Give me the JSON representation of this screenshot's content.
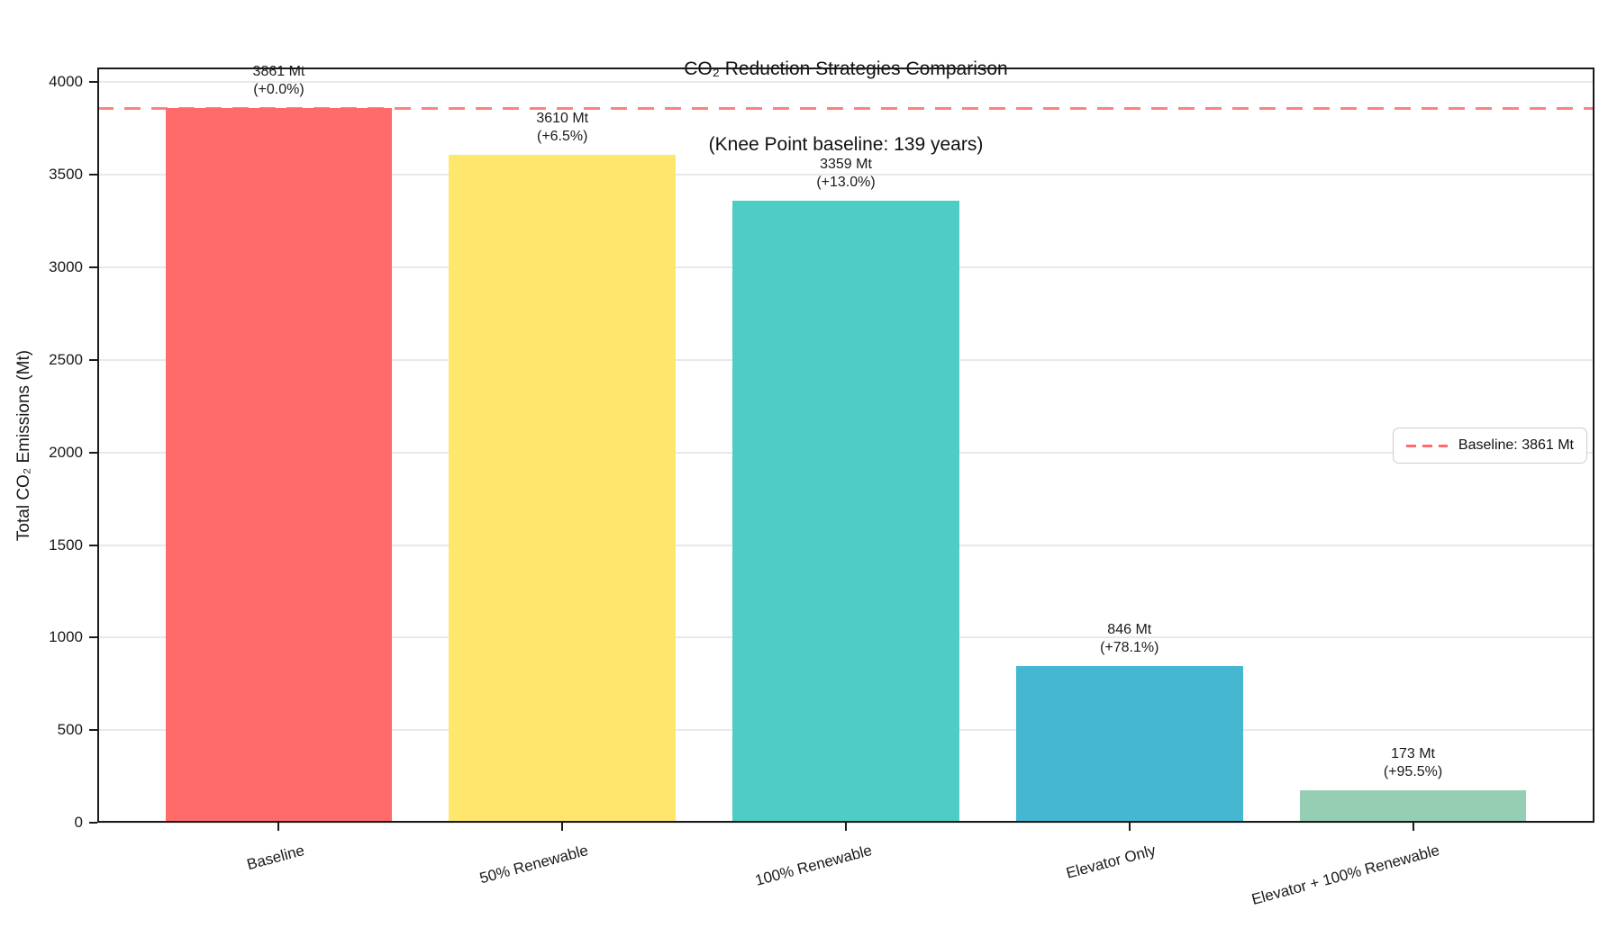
{
  "title": {
    "line1": "CO₂ Reduction Strategies Comparison",
    "line2": "(Knee Point baseline: 139 years)"
  },
  "chart_data": {
    "type": "bar",
    "title": "CO₂ Reduction Strategies Comparison (Knee Point baseline: 139 years)",
    "categories": [
      "Baseline",
      "50% Renewable",
      "100% Renewable",
      "Elevator Only",
      "Elevator + 100% Renewable"
    ],
    "values": [
      3861,
      3610,
      3359,
      846,
      173
    ],
    "value_unit": "Mt",
    "pct_change": [
      "+0.0%",
      "+6.5%",
      "+13.0%",
      "+78.1%",
      "+95.5%"
    ],
    "annotations": [
      {
        "line1": "3861 Mt",
        "line2": "(+0.0%)"
      },
      {
        "line1": "3610 Mt",
        "line2": "(+6.5%)"
      },
      {
        "line1": "3359 Mt",
        "line2": "(+13.0%)"
      },
      {
        "line1": "846 Mt",
        "line2": "(+78.1%)"
      },
      {
        "line1": "173 Mt",
        "line2": "(+95.5%)"
      }
    ],
    "bar_colors": [
      "#FF6B6B",
      "#FFE66D",
      "#4ECDC4",
      "#45B7D1",
      "#96CEB4"
    ],
    "xlabel": "",
    "ylabel": "Total CO₂ Emissions (Mt)",
    "ylim": [
      0,
      4080
    ],
    "yticks": [
      0,
      500,
      1000,
      1500,
      2000,
      2500,
      3000,
      3500,
      4000
    ],
    "grid": true,
    "baseline": {
      "value": 3861,
      "label": "Baseline: 3861 Mt",
      "color": "#FF6B6B",
      "style": "dashed"
    },
    "legend": {
      "position": "center right",
      "entries": [
        {
          "label": "Baseline: 3861 Mt",
          "color": "#FF6B6B",
          "style": "dashed"
        }
      ]
    }
  }
}
